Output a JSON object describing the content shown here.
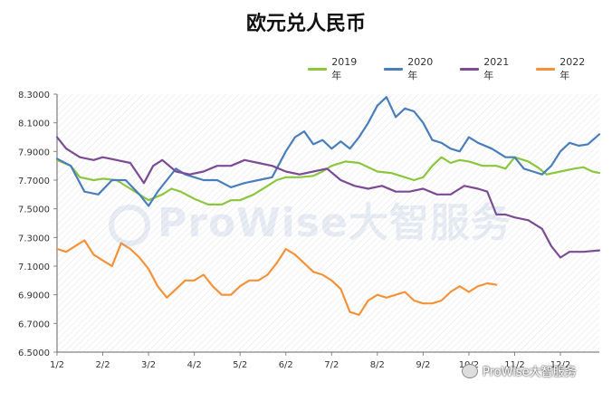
{
  "chart_data": {
    "type": "line",
    "title": "欧元兑人民币",
    "xlabel": "",
    "ylabel": "",
    "ylim": [
      6.5,
      8.3
    ],
    "yticks": [
      "6.5000",
      "6.7000",
      "6.9000",
      "7.1000",
      "7.3000",
      "7.5000",
      "7.7000",
      "7.9000",
      "8.1000",
      "8.3000"
    ],
    "xticks": [
      "1/2",
      "2/2",
      "3/2",
      "4/2",
      "5/2",
      "6/2",
      "7/2",
      "8/2",
      "9/2",
      "10/2",
      "11/2",
      "12/2"
    ],
    "grid": "hatched background",
    "legend": "top-right",
    "series": [
      {
        "name": "2019年",
        "color": "#8cc63f",
        "x": [
          0,
          0.3,
          0.5,
          0.8,
          1.0,
          1.3,
          1.6,
          2.0,
          2.3,
          2.5,
          2.7,
          3.0,
          3.3,
          3.6,
          3.8,
          4.0,
          4.3,
          4.6,
          4.8,
          5.0,
          5.3,
          5.6,
          5.8,
          6.0,
          6.3,
          6.6,
          6.8,
          7.0,
          7.3,
          7.6,
          7.8,
          8.0,
          8.2,
          8.4,
          8.6,
          8.8,
          9.0,
          9.3,
          9.6,
          9.8,
          10.0,
          10.3,
          10.5,
          10.7,
          11.0,
          11.3,
          11.5,
          11.7,
          11.85
        ],
        "y": [
          7.84,
          7.8,
          7.72,
          7.7,
          7.71,
          7.7,
          7.64,
          7.56,
          7.6,
          7.64,
          7.62,
          7.57,
          7.53,
          7.53,
          7.56,
          7.56,
          7.6,
          7.66,
          7.7,
          7.72,
          7.72,
          7.73,
          7.76,
          7.8,
          7.83,
          7.82,
          7.79,
          7.76,
          7.75,
          7.72,
          7.7,
          7.72,
          7.8,
          7.86,
          7.82,
          7.84,
          7.83,
          7.8,
          7.8,
          7.78,
          7.86,
          7.83,
          7.79,
          7.74,
          7.76,
          7.78,
          7.79,
          7.76,
          7.75
        ]
      },
      {
        "name": "2020年",
        "color": "#4a7ebb",
        "x": [
          0,
          0.3,
          0.6,
          0.9,
          1.2,
          1.5,
          1.8,
          2.0,
          2.2,
          2.4,
          2.6,
          2.8,
          3.0,
          3.2,
          3.5,
          3.8,
          4.1,
          4.4,
          4.7,
          5.0,
          5.2,
          5.4,
          5.6,
          5.8,
          6.0,
          6.2,
          6.4,
          6.6,
          6.8,
          7.0,
          7.2,
          7.4,
          7.6,
          7.8,
          8.0,
          8.2,
          8.4,
          8.6,
          8.8,
          9.0,
          9.2,
          9.5,
          9.8,
          10.0,
          10.2,
          10.4,
          10.6,
          10.8,
          11.0,
          11.2,
          11.4,
          11.6,
          11.85
        ],
        "y": [
          7.85,
          7.8,
          7.62,
          7.6,
          7.7,
          7.7,
          7.6,
          7.52,
          7.62,
          7.7,
          7.78,
          7.74,
          7.72,
          7.7,
          7.7,
          7.65,
          7.68,
          7.7,
          7.72,
          7.9,
          8.0,
          8.04,
          7.95,
          7.98,
          7.92,
          7.97,
          7.92,
          8.0,
          8.1,
          8.22,
          8.28,
          8.14,
          8.2,
          8.18,
          8.1,
          7.98,
          7.96,
          7.92,
          7.9,
          8.0,
          7.96,
          7.92,
          7.86,
          7.86,
          7.78,
          7.76,
          7.74,
          7.8,
          7.9,
          7.96,
          7.94,
          7.95,
          8.02
        ]
      },
      {
        "name": "2021年",
        "color": "#7b4b94",
        "x": [
          0,
          0.2,
          0.5,
          0.8,
          1.0,
          1.3,
          1.6,
          1.9,
          2.1,
          2.3,
          2.6,
          2.9,
          3.2,
          3.5,
          3.8,
          4.1,
          4.4,
          4.7,
          5.0,
          5.3,
          5.6,
          5.9,
          6.2,
          6.5,
          6.8,
          7.1,
          7.4,
          7.7,
          8.0,
          8.3,
          8.6,
          8.9,
          9.2,
          9.4,
          9.6,
          9.8,
          10.0,
          10.3,
          10.6,
          10.8,
          11.0,
          11.2,
          11.5,
          11.85
        ],
        "y": [
          8.0,
          7.92,
          7.86,
          7.84,
          7.86,
          7.84,
          7.82,
          7.68,
          7.8,
          7.84,
          7.76,
          7.74,
          7.76,
          7.8,
          7.8,
          7.84,
          7.82,
          7.8,
          7.76,
          7.74,
          7.76,
          7.78,
          7.7,
          7.66,
          7.64,
          7.66,
          7.62,
          7.62,
          7.64,
          7.6,
          7.6,
          7.66,
          7.64,
          7.62,
          7.46,
          7.46,
          7.44,
          7.42,
          7.36,
          7.24,
          7.16,
          7.2,
          7.2,
          7.21
        ]
      },
      {
        "name": "2022年",
        "color": "#f4923a",
        "x": [
          0,
          0.2,
          0.4,
          0.6,
          0.8,
          1.0,
          1.2,
          1.4,
          1.6,
          1.8,
          2.0,
          2.2,
          2.4,
          2.6,
          2.8,
          3.0,
          3.2,
          3.4,
          3.6,
          3.8,
          4.0,
          4.2,
          4.4,
          4.6,
          4.8,
          5.0,
          5.2,
          5.4,
          5.6,
          5.8,
          6.0,
          6.2,
          6.4,
          6.6,
          6.8,
          7.0,
          7.2,
          7.4,
          7.6,
          7.8,
          8.0,
          8.2,
          8.4,
          8.6,
          8.8,
          9.0,
          9.2,
          9.4,
          9.6
        ],
        "y": [
          7.22,
          7.2,
          7.24,
          7.28,
          7.18,
          7.14,
          7.1,
          7.26,
          7.22,
          7.16,
          7.08,
          6.96,
          6.88,
          6.94,
          7.0,
          7.0,
          7.04,
          6.96,
          6.9,
          6.9,
          6.96,
          7.0,
          7.0,
          7.04,
          7.12,
          7.22,
          7.18,
          7.12,
          7.06,
          7.04,
          7.0,
          6.94,
          6.78,
          6.76,
          6.86,
          6.9,
          6.88,
          6.9,
          6.92,
          6.86,
          6.84,
          6.84,
          6.86,
          6.92,
          6.96,
          6.92,
          6.96,
          6.98,
          6.97
        ]
      }
    ]
  },
  "watermark": "ProWise大智服务",
  "footer_brand": "ProWise大智服务"
}
